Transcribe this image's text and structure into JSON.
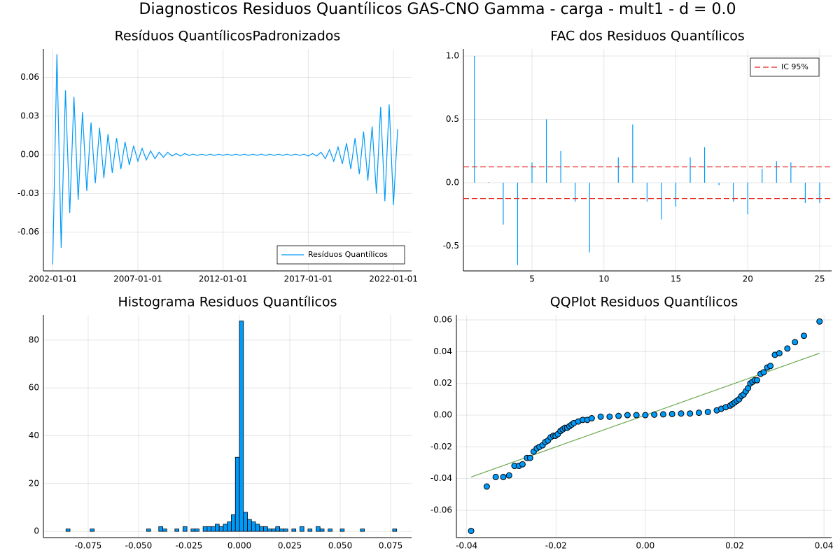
{
  "title": "Diagnosticos Residuos  Quantílicos GAS-CNO Gamma - carga - mult1 - d = 0.0",
  "chart_data": [
    {
      "type": "line",
      "title": "Resíduos  QuantílicosPadronizados",
      "grid": true,
      "legend": "bottom-right",
      "x": [
        "2002-01-01",
        "2002-04-01",
        "2002-07-01",
        "2002-10-01",
        "2003-01-01",
        "2003-04-01",
        "2003-07-01",
        "2003-10-01",
        "2004-01-01",
        "2004-04-01",
        "2004-07-01",
        "2004-10-01",
        "2005-01-01",
        "2005-04-01",
        "2005-07-01",
        "2005-10-01",
        "2006-01-01",
        "2006-04-01",
        "2006-07-01",
        "2006-10-01",
        "2007-01-01",
        "2007-04-01",
        "2007-07-01",
        "2007-10-01",
        "2008-01-01",
        "2008-04-01",
        "2008-07-01",
        "2008-10-01",
        "2009-01-01",
        "2009-04-01",
        "2009-07-01",
        "2009-10-01",
        "2010-01-01",
        "2010-04-01",
        "2010-07-01",
        "2010-10-01",
        "2011-01-01",
        "2011-04-01",
        "2011-07-01",
        "2011-10-01",
        "2012-01-01",
        "2012-04-01",
        "2012-07-01",
        "2012-10-01",
        "2013-01-01",
        "2013-04-01",
        "2013-07-01",
        "2013-10-01",
        "2014-01-01",
        "2014-04-01",
        "2014-07-01",
        "2014-10-01",
        "2015-01-01",
        "2015-04-01",
        "2015-07-01",
        "2015-10-01",
        "2016-01-01",
        "2016-04-01",
        "2016-07-01",
        "2016-10-01",
        "2017-01-01",
        "2017-04-01",
        "2017-07-01",
        "2017-10-01",
        "2018-01-01",
        "2018-04-01",
        "2018-07-01",
        "2018-10-01",
        "2019-01-01",
        "2019-04-01",
        "2019-07-01",
        "2019-10-01",
        "2020-01-01",
        "2020-04-01",
        "2020-07-01",
        "2020-10-01",
        "2021-01-01",
        "2021-04-01",
        "2021-07-01",
        "2021-10-01",
        "2022-01-01",
        "2022-04-01"
      ],
      "series": [
        {
          "name": "Resíduos Quantílicos",
          "color": "#009af9",
          "values": [
            -0.085,
            0.078,
            -0.072,
            0.05,
            -0.045,
            0.045,
            -0.035,
            0.033,
            -0.028,
            0.025,
            -0.022,
            0.021,
            -0.018,
            0.016,
            -0.014,
            0.013,
            -0.011,
            0.01,
            -0.008,
            0.007,
            -0.005,
            0.005,
            -0.004,
            0.003,
            -0.003,
            0.002,
            -0.002,
            0.002,
            -0.001,
            0.001,
            -0.001,
            0.001,
            -0.0005,
            0.0005,
            -0.0005,
            0.0005,
            -0.0005,
            0.0005,
            -0.0005,
            0.0005,
            -0.0005,
            0.0005,
            -0.0005,
            0.0005,
            -0.0005,
            0.0005,
            -0.0005,
            0.0005,
            -0.0005,
            0.0005,
            -0.0005,
            0.0005,
            -0.0005,
            0.0005,
            -0.0005,
            0.0005,
            -0.0005,
            0.0005,
            -0.0005,
            0.0005,
            -0.001,
            0.001,
            -0.001,
            0.002,
            -0.003,
            0.004,
            -0.005,
            0.006,
            -0.007,
            0.009,
            -0.011,
            0.013,
            -0.015,
            0.018,
            -0.02,
            0.022,
            -0.03,
            0.037,
            -0.036,
            0.039,
            -0.039,
            0.02
          ]
        }
      ],
      "xlim": [
        "2001-06-15",
        "2023-01-25"
      ],
      "xticks": [
        "2002-01-01",
        "2007-01-01",
        "2012-01-01",
        "2017-01-01",
        "2022-01-01"
      ],
      "ylim": [
        -0.09,
        0.082
      ],
      "yticks": [
        -0.06,
        -0.03,
        {
          "value": 0,
          "label": "0.00"
        },
        0.03,
        0.06
      ]
    },
    {
      "type": "stem",
      "title": "FAC dos Residuos Quantílicos",
      "grid": true,
      "legend": "top-right",
      "color": "#009af9",
      "x": [
        1,
        2,
        3,
        4,
        5,
        6,
        7,
        8,
        9,
        10,
        11,
        12,
        13,
        14,
        15,
        16,
        17,
        18,
        19,
        20,
        21,
        22,
        23,
        24,
        25
      ],
      "values": [
        1.0,
        0.005,
        -0.33,
        -0.65,
        0.16,
        0.5,
        0.25,
        -0.15,
        -0.55,
        0.0,
        0.2,
        0.46,
        -0.15,
        -0.29,
        -0.19,
        0.2,
        0.28,
        -0.02,
        -0.15,
        -0.25,
        0.11,
        0.17,
        0.16,
        -0.16,
        -0.16
      ],
      "hlines": {
        "name": "IC 95%",
        "color": "#e6261f",
        "values": [
          0.125,
          -0.125
        ]
      },
      "xlim": [
        0.23,
        25.83
      ],
      "xticks": [
        5,
        10,
        15,
        20,
        25
      ],
      "ylim": [
        -0.696,
        1.055
      ],
      "yticks": [
        -0.5,
        {
          "value": 0,
          "label": "0.0"
        },
        0.5,
        {
          "value": 1,
          "label": "1.0"
        }
      ]
    },
    {
      "type": "histogram",
      "title": "Histograma Residuos Quantílicos",
      "grid": true,
      "color": "#009af9",
      "bins": [
        -0.088,
        -0.086,
        -0.084,
        -0.082,
        -0.08,
        -0.078,
        -0.076,
        -0.074,
        -0.072,
        -0.07,
        -0.068,
        -0.066,
        -0.064,
        -0.062,
        -0.06,
        -0.058,
        -0.056,
        -0.054,
        -0.052,
        -0.05,
        -0.048,
        -0.046,
        -0.044,
        -0.042,
        -0.04,
        -0.038,
        -0.036,
        -0.034,
        -0.032,
        -0.03,
        -0.028,
        -0.026,
        -0.024,
        -0.022,
        -0.02,
        -0.018,
        -0.016,
        -0.014,
        -0.012,
        -0.01,
        -0.008,
        -0.006,
        -0.004,
        -0.002,
        0,
        0.002,
        0.004,
        0.006,
        0.008,
        0.01,
        0.012,
        0.014,
        0.016,
        0.018,
        0.02,
        0.022,
        0.024,
        0.026,
        0.028,
        0.03,
        0.032,
        0.034,
        0.036,
        0.038,
        0.04,
        0.042,
        0.044,
        0.046,
        0.048,
        0.05,
        0.052,
        0.054,
        0.056,
        0.058,
        0.06,
        0.062,
        0.064,
        0.066,
        0.068,
        0.07,
        0.072,
        0.074,
        0.076,
        0.078
      ],
      "counts": [
        0,
        1,
        0,
        0,
        0,
        0,
        0,
        1,
        0,
        0,
        0,
        0,
        0,
        0,
        0,
        0,
        0,
        0,
        0,
        0,
        0,
        1,
        0,
        0,
        2,
        1,
        0,
        0,
        1,
        0,
        2,
        0,
        1,
        1,
        0,
        2,
        2,
        2,
        3,
        2,
        3,
        4,
        7,
        31,
        88,
        8,
        5,
        4,
        3,
        2,
        2,
        1,
        1,
        2,
        1,
        1,
        0,
        1,
        0,
        2,
        0,
        1,
        0,
        2,
        1,
        0,
        1,
        0,
        0,
        1,
        0,
        0,
        0,
        0,
        1,
        0,
        0,
        0,
        0,
        0,
        0,
        0,
        1
      ],
      "xlim": [
        -0.0972,
        0.0854
      ],
      "xticks": [
        -0.075,
        {
          "value": -0.05,
          "label": "-0.050"
        },
        -0.025,
        {
          "value": 0,
          "label": "0.000"
        },
        0.025,
        {
          "value": 0.05,
          "label": "0.050"
        },
        0.075
      ],
      "ylim": [
        -2.6,
        90.5
      ],
      "yticks": [
        0,
        20,
        40,
        60,
        80
      ]
    },
    {
      "type": "scatter",
      "title": "QQPlot Residuos Quantílicos",
      "grid": true,
      "color": "#009af9",
      "x": [
        -0.039,
        -0.0355,
        -0.0335,
        -0.0318,
        -0.0305,
        -0.0293,
        -0.0283,
        -0.0275,
        -0.0265,
        -0.0258,
        -0.025,
        -0.0243,
        -0.0237,
        -0.023,
        -0.0224,
        -0.0218,
        -0.0212,
        -0.0206,
        -0.0201,
        -0.0196,
        -0.019,
        -0.0185,
        -0.018,
        -0.0175,
        -0.017,
        -0.0165,
        -0.016,
        -0.015,
        -0.014,
        -0.013,
        -0.012,
        -0.01,
        -0.008,
        -0.006,
        -0.004,
        -0.002,
        0,
        0.002,
        0.004,
        0.006,
        0.008,
        0.01,
        0.012,
        0.014,
        0.016,
        0.017,
        0.018,
        0.019,
        0.0195,
        0.02,
        0.0205,
        0.021,
        0.0215,
        0.022,
        0.0225,
        0.023,
        0.0235,
        0.024,
        0.0245,
        0.025,
        0.0258,
        0.0265,
        0.0273,
        0.028,
        0.029,
        0.03,
        0.0318,
        0.0335,
        0.0355,
        0.039
      ],
      "y": [
        -0.073,
        -0.045,
        -0.039,
        -0.039,
        -0.038,
        -0.032,
        -0.032,
        -0.031,
        -0.027,
        -0.027,
        -0.023,
        -0.021,
        -0.02,
        -0.019,
        -0.017,
        -0.016,
        -0.014,
        -0.013,
        -0.013,
        -0.012,
        -0.01,
        -0.009,
        -0.008,
        -0.008,
        -0.007,
        -0.006,
        -0.005,
        -0.004,
        -0.003,
        -0.003,
        -0.002,
        -0.001,
        -0.001,
        -0.0005,
        0,
        0,
        0,
        0.0003,
        0.0005,
        0.0007,
        0.001,
        0.001,
        0.0015,
        0.002,
        0.003,
        0.004,
        0.005,
        0.006,
        0.007,
        0.008,
        0.009,
        0.01,
        0.012,
        0.013,
        0.015,
        0.017,
        0.02,
        0.021,
        0.022,
        0.022,
        0.026,
        0.027,
        0.03,
        0.031,
        0.038,
        0.039,
        0.042,
        0.046,
        0.05,
        0.059
      ],
      "fit_line": {
        "color": "#6aa84f",
        "x": [
          -0.039,
          0.039
        ],
        "y": [
          -0.039,
          0.039
        ]
      },
      "xlim": [
        -0.0423,
        0.0417
      ],
      "xticks": [
        -0.04,
        -0.02,
        {
          "value": 0,
          "label": "0.00"
        },
        0.02,
        0.04
      ],
      "ylim": [
        -0.0772,
        0.0631
      ],
      "yticks": [
        -0.06,
        -0.04,
        -0.02,
        {
          "value": 0,
          "label": "0.00"
        },
        0.02,
        0.04,
        0.06
      ]
    }
  ]
}
